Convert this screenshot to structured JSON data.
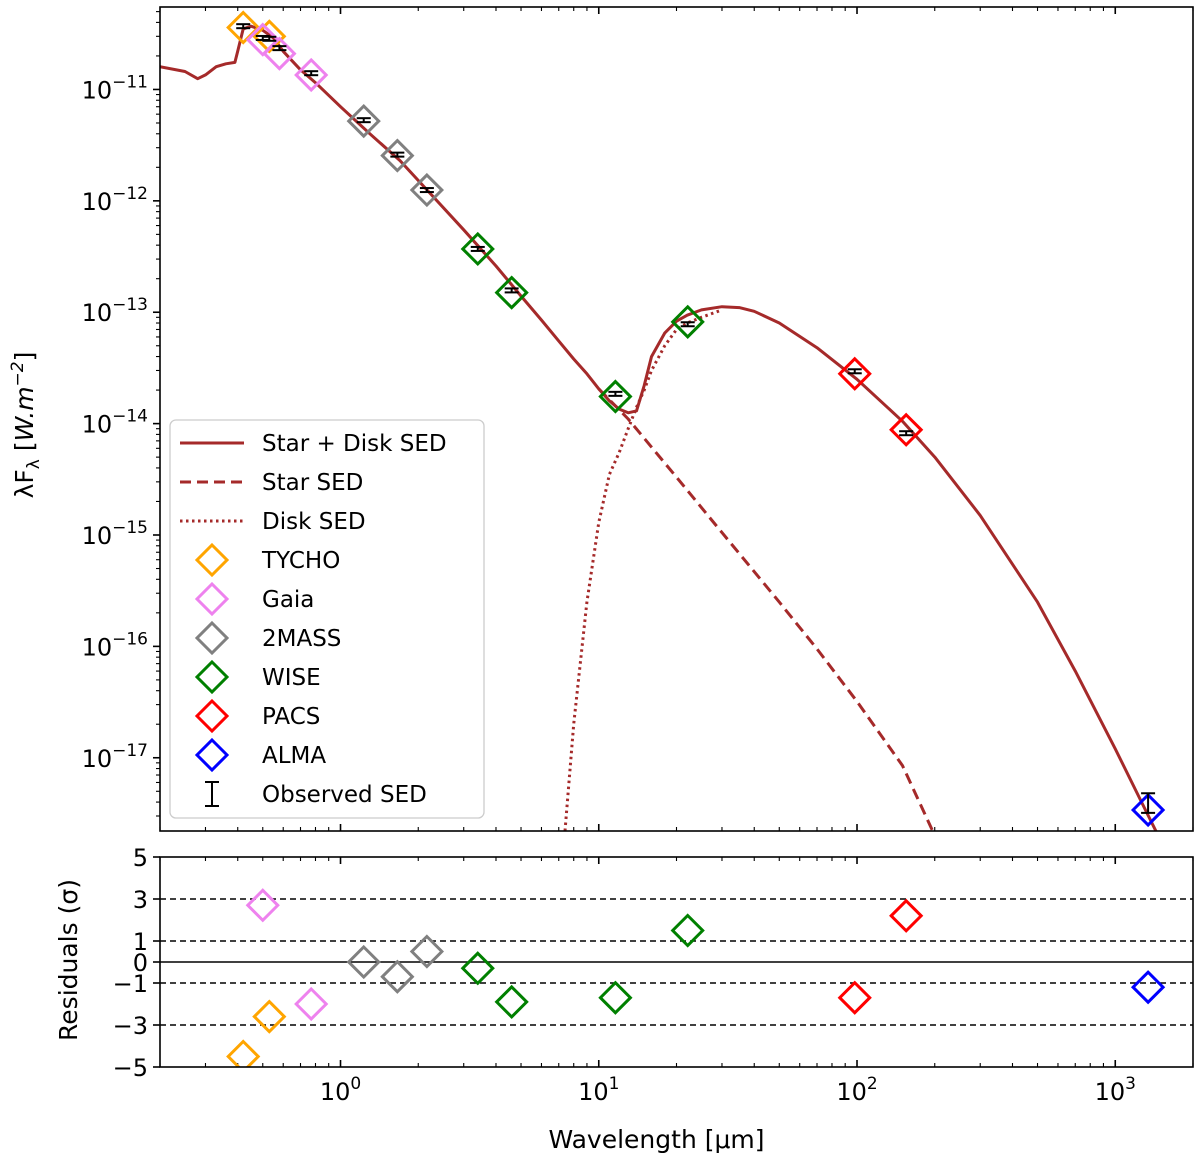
{
  "chart_data": [
    {
      "type": "line",
      "panel": "sed",
      "xscale": "log",
      "yscale": "log",
      "xlim": [
        0.2,
        2000
      ],
      "ylim": [
        2.2e-18,
        5.5e-11
      ],
      "ylabel": "λF_λ [W.m^-2]",
      "ylabel_parts": {
        "main": "λF",
        "sub": "λ",
        "bracket_open": "[",
        "unit": "W.m",
        "exponent": "−2",
        "bracket_close": "]"
      },
      "x_ticks": [
        {
          "value": 1,
          "base": "10",
          "exp": "0"
        },
        {
          "value": 10,
          "base": "10",
          "exp": "1"
        },
        {
          "value": 100,
          "base": "10",
          "exp": "2"
        },
        {
          "value": 1000,
          "base": "10",
          "exp": "3"
        }
      ],
      "y_ticks": [
        {
          "value": 1e-11,
          "base": "10",
          "exp": "−11"
        },
        {
          "value": 1e-12,
          "base": "10",
          "exp": "−12"
        },
        {
          "value": 1e-13,
          "base": "10",
          "exp": "−13"
        },
        {
          "value": 1e-14,
          "base": "10",
          "exp": "−14"
        },
        {
          "value": 1e-15,
          "base": "10",
          "exp": "−15"
        },
        {
          "value": 1e-16,
          "base": "10",
          "exp": "−16"
        },
        {
          "value": 1e-17,
          "base": "10",
          "exp": "−17"
        }
      ],
      "series": [
        {
          "name": "Star + Disk SED",
          "style": "solid",
          "color": "#a52a2a",
          "x": [
            0.2,
            0.25,
            0.28,
            0.3,
            0.33,
            0.36,
            0.39,
            0.4,
            0.42,
            0.45,
            0.5,
            0.55,
            0.6,
            0.7,
            0.8,
            1.0,
            1.3,
            1.7,
            2.2,
            3.0,
            4.0,
            5.0,
            6.0,
            7.0,
            8.0,
            9.0,
            10.0,
            11.0,
            12.0,
            13.0,
            14.0,
            15.0,
            16.0,
            18.0,
            20.0,
            22.0,
            25.0,
            30.0,
            35.0,
            40.0,
            50.0,
            70.0,
            100.0,
            150.0,
            200.0,
            300.0,
            500.0,
            700.0,
            1000.0,
            1300.0,
            1500.0,
            1600.0
          ],
          "y": [
            1.6e-11,
            1.45e-11,
            1.25e-11,
            1.35e-11,
            1.6e-11,
            1.7e-11,
            1.75e-11,
            2.2e-11,
            3.5e-11,
            3.7e-11,
            3.4e-11,
            2.9e-11,
            2.2e-11,
            1.5e-11,
            1.15e-11,
            7e-12,
            4e-12,
            2.3e-12,
            1.2e-12,
            5.5e-13,
            2.6e-13,
            1.4e-13,
            8.5e-14,
            5.5e-14,
            3.8e-14,
            2.8e-14,
            2.05e-14,
            1.6e-14,
            1.35e-14,
            1.25e-14,
            1.3e-14,
            2.2e-14,
            4e-14,
            6.5e-14,
            8.3e-14,
            9.4e-14,
            1.05e-13,
            1.12e-13,
            1.1e-13,
            1.02e-13,
            8e-14,
            4.8e-14,
            2.5e-14,
            1.05e-14,
            5e-15,
            1.5e-15,
            2.5e-16,
            6e-17,
            1.2e-17,
            3.5e-18,
            1.8e-18,
            1.2e-18
          ]
        },
        {
          "name": "Star SED",
          "style": "dashed",
          "color": "#a52a2a",
          "x": [
            10.0,
            13.0,
            20.0,
            30.0,
            50.0,
            70.0,
            100.0,
            150.0,
            200.0
          ],
          "y": [
            2.05e-14,
            1.1e-14,
            3.3e-15,
            1.05e-15,
            2.5e-16,
            9.5e-17,
            3.2e-17,
            8.5e-18,
            2e-18
          ]
        },
        {
          "name": "Disk SED",
          "style": "dotted",
          "color": "#a52a2a",
          "x": [
            7.4,
            8.0,
            9.0,
            10.0,
            11.0,
            12.0,
            13.0,
            14.0,
            15.0,
            16.0,
            18.0,
            20.0,
            22.0,
            25.0,
            30.0
          ],
          "y": [
            2.2e-18,
            2e-17,
            2.5e-16,
            1.3e-15,
            3.5e-15,
            5.5e-15,
            9e-15,
            1.4e-14,
            2e-14,
            3e-14,
            5e-14,
            7e-14,
            8e-14,
            9e-14,
            1.05e-13
          ]
        }
      ],
      "photometry": [
        {
          "band": "TYCHO",
          "color": "#ffa500",
          "x": [
            0.42,
            0.53
          ],
          "y": [
            3.6e-11,
            3e-11
          ]
        },
        {
          "band": "Gaia",
          "color": "#ee82ee",
          "x": [
            0.5,
            0.58,
            0.77
          ],
          "y": [
            2.8e-11,
            2.1e-11,
            1.35e-11
          ]
        },
        {
          "band": "2MASS",
          "color": "#808080",
          "x": [
            1.23,
            1.66,
            2.16
          ],
          "y": [
            5.2e-12,
            2.55e-12,
            1.25e-12
          ]
        },
        {
          "band": "WISE",
          "color": "#008000",
          "x": [
            3.4,
            4.6,
            11.6,
            22.1
          ],
          "y": [
            3.7e-13,
            1.5e-13,
            1.75e-14,
            8.2e-14
          ]
        },
        {
          "band": "PACS",
          "color": "#ff0000",
          "x": [
            98,
            155
          ],
          "y": [
            2.8e-14,
            8.8e-15
          ]
        },
        {
          "band": "ALMA",
          "color": "#0000ff",
          "x": [
            1340
          ],
          "y": [
            3.4e-18
          ]
        }
      ],
      "observed": {
        "name": "Observed SED",
        "x": [
          0.42,
          0.5,
          0.53,
          0.58,
          0.77,
          1.23,
          1.66,
          2.16,
          3.4,
          4.6,
          11.6,
          22.1,
          98,
          155,
          1340
        ],
        "y": [
          3.7e-11,
          2.9e-11,
          2.85e-11,
          2.35e-11,
          1.4e-11,
          5.3e-12,
          2.6e-12,
          1.25e-12,
          3.7e-13,
          1.57e-13,
          1.85e-14,
          7.8e-14,
          2.95e-14,
          8.2e-15,
          4e-18
        ],
        "err_lo": [
          0.0,
          0.0,
          0.0,
          0.0,
          0.0,
          0.0,
          0.0,
          0.0,
          0.0,
          0.0,
          0.0,
          0.0,
          0.0,
          0.0,
          8e-19
        ],
        "err_hi": [
          0.0,
          0.0,
          0.0,
          0.0,
          0.0,
          0.0,
          0.0,
          0.0,
          0.0,
          0.0,
          0.0,
          0.0,
          0.0,
          0.0,
          8e-19
        ]
      },
      "legend": {
        "position": "lower-left",
        "entries": [
          {
            "label": "Star + Disk SED",
            "kind": "line",
            "style": "solid",
            "color": "#a52a2a"
          },
          {
            "label": "Star SED",
            "kind": "line",
            "style": "dashed",
            "color": "#a52a2a"
          },
          {
            "label": "Disk SED",
            "kind": "line",
            "style": "dotted",
            "color": "#a52a2a"
          },
          {
            "label": "TYCHO",
            "kind": "marker",
            "color": "#ffa500"
          },
          {
            "label": "Gaia",
            "kind": "marker",
            "color": "#ee82ee"
          },
          {
            "label": "2MASS",
            "kind": "marker",
            "color": "#808080"
          },
          {
            "label": "WISE",
            "kind": "marker",
            "color": "#008000"
          },
          {
            "label": "PACS",
            "kind": "marker",
            "color": "#ff0000"
          },
          {
            "label": "ALMA",
            "kind": "marker",
            "color": "#0000ff"
          },
          {
            "label": "Observed SED",
            "kind": "errorbar",
            "color": "#000000"
          }
        ]
      }
    },
    {
      "type": "scatter",
      "panel": "residuals",
      "xscale": "log",
      "xlim": [
        0.2,
        2000
      ],
      "ylim": [
        -5,
        5
      ],
      "xlabel": "Wavelength [μm]",
      "ylabel": "Residuals (σ)",
      "y_ticks": [
        {
          "value": 5,
          "label": "5"
        },
        {
          "value": 3,
          "label": "3"
        },
        {
          "value": 1,
          "label": "1"
        },
        {
          "value": 0,
          "label": "0"
        },
        {
          "value": -1,
          "label": "−1"
        },
        {
          "value": -3,
          "label": "−3"
        },
        {
          "value": -5,
          "label": "−5"
        }
      ],
      "x_ticks": [
        {
          "value": 1,
          "base": "10",
          "exp": "0"
        },
        {
          "value": 10,
          "base": "10",
          "exp": "1"
        },
        {
          "value": 100,
          "base": "10",
          "exp": "2"
        },
        {
          "value": 1000,
          "base": "10",
          "exp": "3"
        }
      ],
      "reference_lines": [
        {
          "y": 0,
          "style": "solid"
        },
        {
          "y": 1,
          "style": "dashed"
        },
        {
          "y": -1,
          "style": "dashed"
        },
        {
          "y": 3,
          "style": "dashed"
        },
        {
          "y": -3,
          "style": "dashed"
        }
      ],
      "points": [
        {
          "band": "TYCHO",
          "color": "#ffa500",
          "x": [
            0.42,
            0.53
          ],
          "y": [
            -4.5,
            -2.6
          ]
        },
        {
          "band": "Gaia",
          "color": "#ee82ee",
          "x": [
            0.5,
            0.77
          ],
          "y": [
            2.7,
            -2.0
          ]
        },
        {
          "band": "2MASS",
          "color": "#808080",
          "x": [
            1.23,
            1.66,
            2.16
          ],
          "y": [
            0.0,
            -0.7,
            0.5
          ]
        },
        {
          "band": "WISE",
          "color": "#008000",
          "x": [
            3.4,
            4.6,
            11.6,
            22.1
          ],
          "y": [
            -0.3,
            -1.9,
            -1.7,
            1.5
          ]
        },
        {
          "band": "PACS",
          "color": "#ff0000",
          "x": [
            98,
            155
          ],
          "y": [
            -1.7,
            2.2
          ]
        },
        {
          "band": "ALMA",
          "color": "#0000ff",
          "x": [
            1340
          ],
          "y": [
            -1.2
          ]
        }
      ]
    }
  ]
}
